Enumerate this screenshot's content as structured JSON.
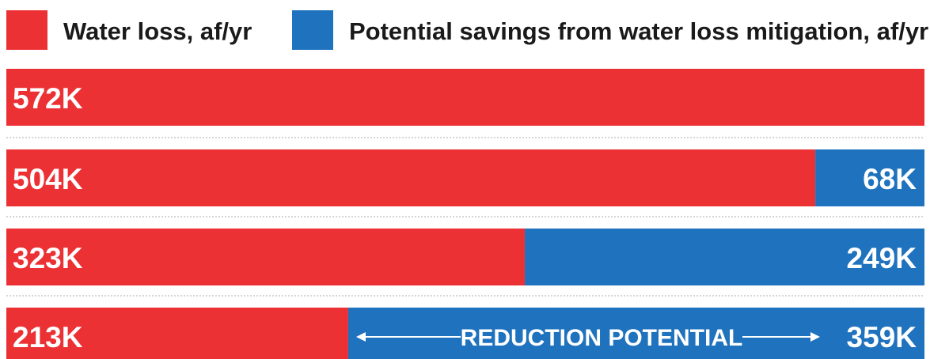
{
  "chart_data": {
    "type": "bar",
    "orientation": "horizontal",
    "stacked": true,
    "legend": {
      "placement": "top",
      "entries": [
        {
          "name": "Water loss, af/yr",
          "color": "#ec3135"
        },
        {
          "name": "Potential savings from water loss mitigation, af/yr",
          "color": "#1f72bd"
        }
      ]
    },
    "total": 572,
    "series": [
      {
        "name": "Water loss, af/yr",
        "color": "#ec3135",
        "values": [
          572,
          504,
          323,
          213
        ],
        "labels": [
          "572K",
          "504K",
          "323K",
          "213K"
        ]
      },
      {
        "name": "Potential savings from water loss mitigation, af/yr",
        "color": "#1f72bd",
        "values": [
          0,
          68,
          249,
          359
        ],
        "labels": [
          "",
          "68K",
          "249K",
          "359K"
        ]
      }
    ],
    "annotation": {
      "text": "REDUCTION POTENTIAL",
      "bar": 3
    },
    "grid": false,
    "separator_color": "#d5d5d5"
  }
}
